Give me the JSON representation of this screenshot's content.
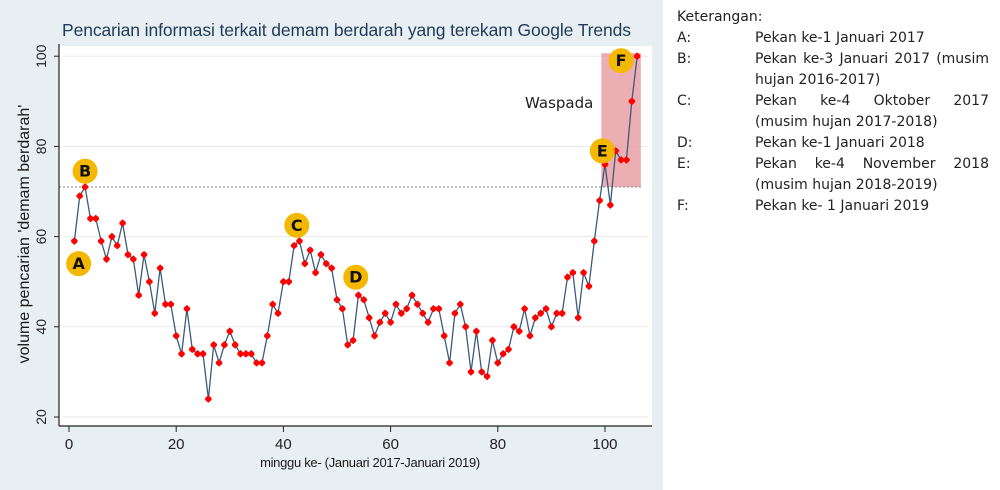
{
  "chart_data": {
    "type": "line",
    "title": "Pencarian informasi terkait demam berdarah yang terekam Google Trends",
    "xlabel": "minggu ke- (Januari 2017-Januari 2019)",
    "ylabel": "volume pencarian 'demam berdarah'",
    "xlim": [
      0,
      107
    ],
    "ylim": [
      20,
      100
    ],
    "xticks": [
      0,
      20,
      40,
      60,
      80,
      100
    ],
    "yticks": [
      20,
      40,
      60,
      80,
      100
    ],
    "grid": true,
    "threshold": {
      "value": 71,
      "style": "dotted"
    },
    "alert_region": {
      "label": "Waspada",
      "x_start": 99.5,
      "x_end": 106.5,
      "y_start": 71,
      "y_end": 100,
      "color": "#e8a0a4"
    },
    "series": [
      {
        "name": "volume pencarian",
        "color": "#ff0000",
        "line_color": "#3d5a7a",
        "x": [
          1,
          2,
          3,
          4,
          5,
          6,
          7,
          8,
          9,
          10,
          11,
          12,
          13,
          14,
          15,
          16,
          17,
          18,
          19,
          20,
          21,
          22,
          23,
          24,
          25,
          26,
          27,
          28,
          29,
          30,
          31,
          32,
          33,
          34,
          35,
          36,
          37,
          38,
          39,
          40,
          41,
          42,
          43,
          44,
          45,
          46,
          47,
          48,
          49,
          50,
          51,
          52,
          53,
          54,
          55,
          56,
          57,
          58,
          59,
          60,
          61,
          62,
          63,
          64,
          65,
          66,
          67,
          68,
          69,
          70,
          71,
          72,
          73,
          74,
          75,
          76,
          77,
          78,
          79,
          80,
          81,
          82,
          83,
          84,
          85,
          86,
          87,
          88,
          89,
          90,
          91,
          92,
          93,
          94,
          95,
          96,
          97,
          98,
          99,
          100,
          101,
          102,
          103,
          104,
          105,
          106
        ],
        "values": [
          59,
          69,
          71,
          64,
          64,
          59,
          55,
          60,
          58,
          63,
          56,
          55,
          47,
          56,
          50,
          43,
          53,
          45,
          45,
          38,
          34,
          44,
          35,
          34,
          34,
          24,
          36,
          32,
          36,
          39,
          36,
          34,
          34,
          34,
          32,
          32,
          38,
          45,
          43,
          50,
          50,
          58,
          59,
          54,
          57,
          52,
          56,
          54,
          53,
          46,
          44,
          36,
          37,
          47,
          46,
          42,
          38,
          41,
          43,
          41,
          45,
          43,
          44,
          47,
          45,
          43,
          41,
          44,
          44,
          38,
          32,
          43,
          45,
          40,
          30,
          39,
          30,
          29,
          37,
          32,
          34,
          35,
          40,
          39,
          44,
          38,
          42,
          43,
          44,
          40,
          43,
          43,
          51,
          52,
          42,
          52,
          49,
          59,
          68,
          76,
          67,
          79,
          77,
          77,
          90,
          100
        ]
      }
    ],
    "annotations": [
      {
        "label": "A",
        "x": 1.8,
        "y": 54
      },
      {
        "label": "B",
        "x": 3,
        "y": 74.5
      },
      {
        "label": "C",
        "x": 42.5,
        "y": 62.5
      },
      {
        "label": "D",
        "x": 53.5,
        "y": 51
      },
      {
        "label": "E",
        "x": 99.5,
        "y": 79
      },
      {
        "label": "F",
        "x": 103,
        "y": 99
      }
    ]
  },
  "legend": {
    "title": "Keterangan:",
    "items": [
      {
        "key": "A:",
        "text": "Pekan ke-1 Januari 2017"
      },
      {
        "key": "B:",
        "text": "Pekan ke-3 Januari 2017 (musim hujan 2016-2017)"
      },
      {
        "key": "C:",
        "text": "Pekan ke-4 Oktober 2017 (musim hujan 2017-2018)"
      },
      {
        "key": "D:",
        "text": "Pekan ke-1 Januari 2018"
      },
      {
        "key": "E:",
        "text": "Pekan ke-4 November 2018 (musim hujan 2018-2019)"
      },
      {
        "key": "F:",
        "text": "Pekan ke- 1 Januari 2019"
      }
    ]
  },
  "colors": {
    "panel_bg": "#e8eff2",
    "plot_bg": "#ffffff",
    "marker": "#ff0000",
    "line": "#3d5a7a",
    "annotation_badge": "#f5b800",
    "alert_region": "#e8a0a4"
  }
}
